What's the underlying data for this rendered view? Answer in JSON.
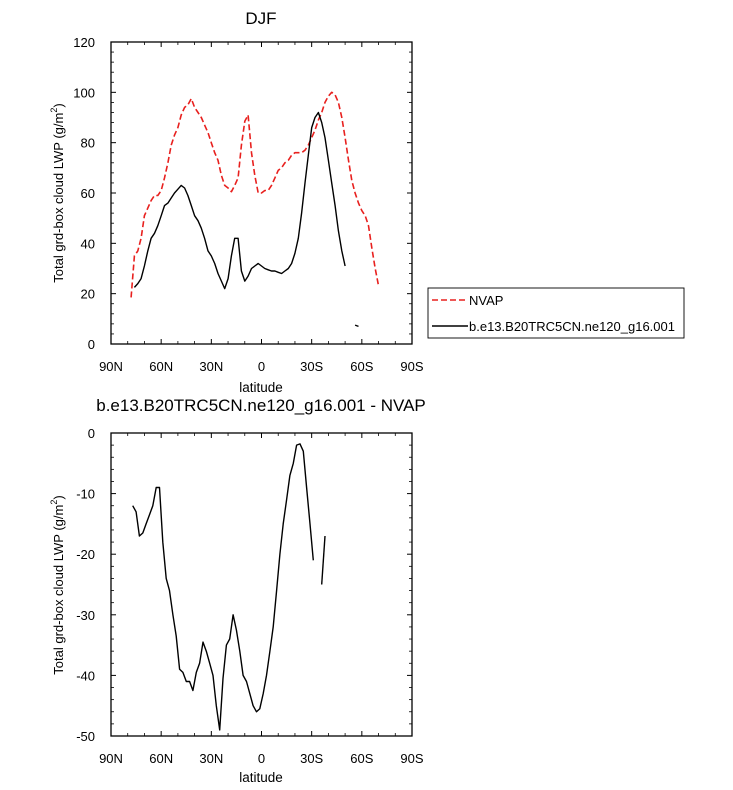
{
  "chart_data": [
    {
      "type": "line",
      "title": "DJF",
      "xlabel": "latitude",
      "ylabel": "Total grd-box cloud LWP (g/m",
      "ylabel_sup": "2",
      "ylabel_tail": ")",
      "xlim": [
        -90,
        90
      ],
      "ylim": [
        0,
        120
      ],
      "xticks": [
        -90,
        -60,
        -30,
        0,
        30,
        60,
        90
      ],
      "xtick_labels": [
        "90N",
        "60N",
        "30N",
        "0",
        "30S",
        "60S",
        "90S"
      ],
      "yticks": [
        0,
        20,
        40,
        60,
        80,
        100,
        120
      ],
      "ytick_labels": [
        "0",
        "20",
        "40",
        "60",
        "80",
        "100",
        "120"
      ],
      "legend": {
        "placement": "right",
        "entries": [
          "NVAP",
          "b.e13.B20TRC5CN.ne120_g16.001"
        ]
      },
      "series": [
        {
          "name": "NVAP",
          "color": "#e8201e",
          "dash": "dashed",
          "segments": [
            [
              [
                -78,
                18.5
              ],
              [
                -76,
                35
              ],
              [
                -74,
                37
              ],
              [
                -72,
                42
              ],
              [
                -70,
                51
              ],
              [
                -68,
                54
              ],
              [
                -66,
                57
              ],
              [
                -64,
                59
              ],
              [
                -62,
                59
              ],
              [
                -60,
                61
              ],
              [
                -58,
                66
              ],
              [
                -56,
                72
              ],
              [
                -54,
                79
              ],
              [
                -52,
                83
              ],
              [
                -50,
                86
              ],
              [
                -48,
                91
              ],
              [
                -46,
                94
              ],
              [
                -44,
                95
              ],
              [
                -42,
                97.5
              ],
              [
                -40,
                94
              ],
              [
                -38,
                92
              ],
              [
                -36,
                90
              ],
              [
                -34,
                87
              ],
              [
                -32,
                84
              ],
              [
                -30,
                80
              ],
              [
                -28,
                76
              ],
              [
                -26,
                73
              ],
              [
                -24,
                67
              ],
              [
                -22,
                63
              ],
              [
                -20,
                62
              ],
              [
                -18,
                60.5
              ],
              [
                -16,
                63
              ],
              [
                -14,
                66
              ],
              [
                -12,
                79
              ],
              [
                -10,
                88.5
              ],
              [
                -8,
                91
              ],
              [
                -6,
                76
              ],
              [
                -4,
                67
              ],
              [
                -2,
                60
              ],
              [
                0,
                60
              ],
              [
                2,
                61
              ],
              [
                4,
                61
              ],
              [
                6,
                63
              ],
              [
                8,
                66
              ],
              [
                10,
                69
              ],
              [
                12,
                70
              ],
              [
                14,
                72
              ],
              [
                16,
                73
              ],
              [
                18,
                75
              ],
              [
                20,
                76
              ],
              [
                22,
                76
              ],
              [
                24,
                76
              ],
              [
                26,
                77
              ],
              [
                28,
                79
              ],
              [
                30,
                82
              ],
              [
                32,
                85
              ],
              [
                34,
                89
              ],
              [
                36,
                92
              ],
              [
                38,
                96
              ],
              [
                40,
                98.5
              ],
              [
                42,
                100
              ],
              [
                44,
                99
              ],
              [
                46,
                96
              ],
              [
                48,
                90
              ],
              [
                50,
                82
              ],
              [
                52,
                73
              ],
              [
                54,
                65
              ],
              [
                56,
                60
              ],
              [
                58,
                56
              ],
              [
                60,
                53
              ],
              [
                62,
                51
              ],
              [
                64,
                47
              ],
              [
                66,
                38
              ],
              [
                68,
                30
              ],
              [
                70,
                23
              ]
            ]
          ]
        },
        {
          "name": "b.e13.B20TRC5CN.ne120_g16.001",
          "color": "#000000",
          "dash": "solid",
          "segments": [
            [
              [
                -76,
                22.5
              ],
              [
                -74,
                24
              ],
              [
                -72,
                26
              ],
              [
                -70,
                31
              ],
              [
                -68,
                37
              ],
              [
                -66,
                42
              ],
              [
                -64,
                44
              ],
              [
                -62,
                47
              ],
              [
                -60,
                51
              ],
              [
                -58,
                55
              ],
              [
                -56,
                56
              ],
              [
                -54,
                58
              ],
              [
                -52,
                60
              ],
              [
                -50,
                61.5
              ],
              [
                -48,
                63
              ],
              [
                -46,
                62
              ],
              [
                -44,
                59
              ],
              [
                -42,
                55
              ],
              [
                -40,
                51
              ],
              [
                -38,
                49
              ],
              [
                -36,
                46
              ],
              [
                -34,
                42
              ],
              [
                -32,
                37
              ],
              [
                -30,
                35
              ],
              [
                -28,
                32
              ],
              [
                -26,
                28
              ],
              [
                -24,
                25
              ],
              [
                -22,
                22
              ],
              [
                -20,
                26
              ],
              [
                -18,
                35
              ],
              [
                -16,
                42
              ],
              [
                -14,
                42
              ],
              [
                -12,
                29
              ],
              [
                -10,
                25
              ],
              [
                -8,
                27
              ],
              [
                -6,
                30
              ],
              [
                -4,
                31
              ],
              [
                -2,
                32
              ],
              [
                0,
                31
              ],
              [
                2,
                30
              ],
              [
                4,
                29.5
              ],
              [
                6,
                29
              ],
              [
                8,
                29
              ],
              [
                10,
                28.5
              ],
              [
                12,
                28
              ],
              [
                14,
                29
              ],
              [
                16,
                30
              ],
              [
                18,
                32
              ],
              [
                20,
                36
              ],
              [
                22,
                42
              ],
              [
                24,
                52
              ],
              [
                26,
                64
              ],
              [
                28,
                75
              ],
              [
                30,
                86
              ],
              [
                32,
                90
              ],
              [
                34,
                92
              ],
              [
                36,
                88
              ],
              [
                38,
                82
              ],
              [
                40,
                73
              ],
              [
                42,
                64
              ],
              [
                44,
                55
              ],
              [
                46,
                45
              ],
              [
                48,
                37
              ],
              [
                50,
                31
              ]
            ],
            [
              [
                56,
                7.5
              ],
              [
                58,
                7
              ]
            ]
          ]
        }
      ]
    },
    {
      "type": "line",
      "title": "b.e13.B20TRC5CN.ne120_g16.001 - NVAP",
      "xlabel": "latitude",
      "ylabel": "Total grd-box cloud LWP (g/m",
      "ylabel_sup": "2",
      "ylabel_tail": ")",
      "xlim": [
        -90,
        90
      ],
      "ylim": [
        -50,
        0
      ],
      "xticks": [
        -90,
        -60,
        -30,
        0,
        30,
        60,
        90
      ],
      "xtick_labels": [
        "90N",
        "60N",
        "30N",
        "0",
        "30S",
        "60S",
        "90S"
      ],
      "yticks": [
        -50,
        -40,
        -30,
        -20,
        -10,
        0
      ],
      "ytick_labels": [
        "-50",
        "-40",
        "-30",
        "-20",
        "-10",
        "0"
      ],
      "series": [
        {
          "color": "#000000",
          "dash": "solid",
          "segments": [
            [
              [
                -77,
                -12
              ],
              [
                -75,
                -13
              ],
              [
                -73,
                -17
              ],
              [
                -71,
                -16.5
              ],
              [
                -69,
                -15
              ],
              [
                -67,
                -13.5
              ],
              [
                -65,
                -12
              ],
              [
                -63,
                -9
              ],
              [
                -61,
                -9
              ],
              [
                -59,
                -18
              ],
              [
                -57,
                -24
              ],
              [
                -55,
                -26
              ],
              [
                -53,
                -30
              ],
              [
                -51,
                -33.5
              ],
              [
                -49,
                -39
              ],
              [
                -47,
                -39.5
              ],
              [
                -45,
                -41
              ],
              [
                -43,
                -41
              ],
              [
                -41,
                -42.5
              ],
              [
                -39,
                -39.5
              ],
              [
                -37,
                -38
              ],
              [
                -35,
                -34.5
              ],
              [
                -33,
                -36
              ],
              [
                -31,
                -38
              ],
              [
                -29,
                -40
              ],
              [
                -27,
                -45
              ],
              [
                -25,
                -49
              ],
              [
                -23,
                -40.5
              ],
              [
                -21,
                -35
              ],
              [
                -19,
                -34
              ],
              [
                -17,
                -30
              ],
              [
                -15,
                -32.5
              ],
              [
                -13,
                -36
              ],
              [
                -11,
                -40
              ],
              [
                -9,
                -41
              ],
              [
                -7,
                -43
              ],
              [
                -5,
                -45
              ],
              [
                -3,
                -46
              ],
              [
                -1,
                -45.5
              ],
              [
                1,
                -43
              ],
              [
                3,
                -40
              ],
              [
                5,
                -36
              ],
              [
                7,
                -32
              ],
              [
                9,
                -26
              ],
              [
                11,
                -20
              ],
              [
                13,
                -15
              ],
              [
                15,
                -11
              ],
              [
                17,
                -7
              ],
              [
                19,
                -5
              ],
              [
                21,
                -2
              ],
              [
                23,
                -1.8
              ],
              [
                25,
                -3
              ],
              [
                27,
                -9
              ],
              [
                29,
                -15
              ],
              [
                31,
                -21
              ]
            ],
            [
              [
                36,
                -25
              ],
              [
                38,
                -17
              ]
            ]
          ]
        }
      ]
    }
  ]
}
